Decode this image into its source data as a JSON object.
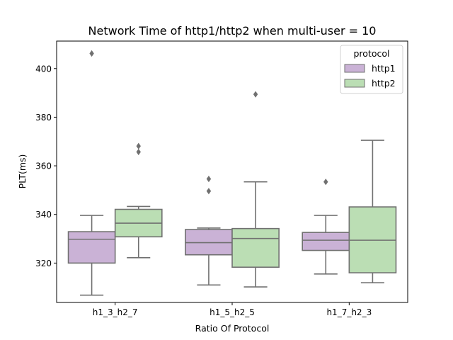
{
  "chart_data": {
    "type": "box",
    "title": "Network Time of http1/http2 when multi-user = 10",
    "xlabel": "Ratio Of Protocol",
    "ylabel": "PLT(ms)",
    "categories": [
      "h1_3_h2_7",
      "h1_5_h2_5",
      "h1_7_h2_3"
    ],
    "ylim": [
      303.8,
      411.3
    ],
    "yticks": [
      320,
      340,
      360,
      380,
      400
    ],
    "grid": false,
    "legend": {
      "title": "protocol",
      "position": "top-right"
    },
    "colors": {
      "http1": "#cab2d6",
      "http2": "#bbdeb4",
      "line": "#707070"
    },
    "series": [
      {
        "name": "http1",
        "boxes": [
          {
            "whisker_low": 306.8,
            "q1": 320.0,
            "median": 329.8,
            "q3": 332.9,
            "whisker_high": 339.6,
            "outliers": [
              406.2
            ]
          },
          {
            "whisker_low": 311.0,
            "q1": 323.4,
            "median": 328.4,
            "q3": 333.8,
            "whisker_high": 334.4,
            "outliers": [
              349.6,
              354.6
            ]
          },
          {
            "whisker_low": 315.5,
            "q1": 325.2,
            "median": 329.4,
            "q3": 332.6,
            "whisker_high": 339.6,
            "outliers": [
              353.4
            ]
          }
        ]
      },
      {
        "name": "http2",
        "boxes": [
          {
            "whisker_low": 322.2,
            "q1": 330.8,
            "median": 336.4,
            "q3": 342.1,
            "whisker_high": 343.3,
            "outliers": [
              365.7,
              368.1
            ]
          },
          {
            "whisker_low": 310.2,
            "q1": 318.3,
            "median": 330.1,
            "q3": 334.2,
            "whisker_high": 353.4,
            "outliers": [
              389.4
            ]
          },
          {
            "whisker_low": 311.9,
            "q1": 316.0,
            "median": 329.4,
            "q3": 343.1,
            "whisker_high": 370.5,
            "outliers": []
          }
        ]
      }
    ]
  }
}
